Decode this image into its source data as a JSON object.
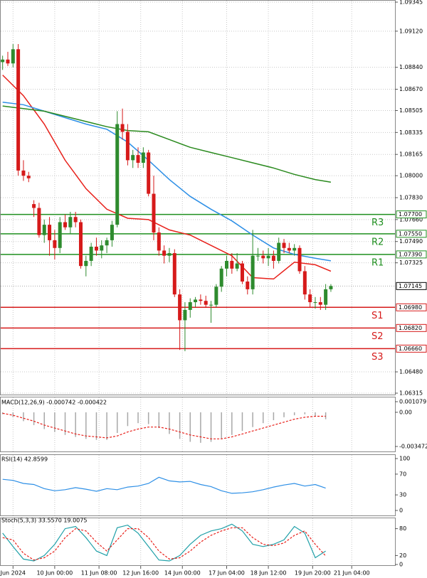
{
  "chart_data": [
    {
      "type": "candlestick",
      "xlim": [
        -0.5,
        75.3
      ],
      "xticks": [
        {
          "value": 2,
          "label": "Jun 2024"
        },
        {
          "value": 10,
          "label": "10 Jun 00:00"
        },
        {
          "value": 18.5,
          "label": "11 Jun 08:00"
        },
        {
          "value": 26.5,
          "label": "12 Jun 16:00"
        },
        {
          "value": 34.5,
          "label": "14 Jun 00:00"
        },
        {
          "value": 43,
          "label": "17 Jun 04:00"
        },
        {
          "value": 51,
          "label": "18 Jun 12:00"
        },
        {
          "value": 59.5,
          "label": "19 Jun 20:00"
        },
        {
          "value": 67,
          "label": "21 Jun 04:00"
        }
      ],
      "ylim": [
        1.06315,
        1.09345
      ],
      "yticks": [
        1.09345,
        {
          "value": 1.0912,
          "label": "1.09120"
        },
        {
          "value": 1.0884,
          "label": "1.08840"
        },
        {
          "value": 1.0867,
          "label": "1.08670"
        },
        1.08505,
        1.08335,
        1.08165,
        {
          "value": 1.08,
          "label": "1.08000"
        },
        {
          "value": 1.0783,
          "label": "1.07830"
        },
        {
          "value": 1.0766,
          "label": "1.07660"
        },
        {
          "value": 1.0749,
          "label": "1.07490"
        },
        1.07325,
        {
          "value": 1.0648,
          "label": "1.06480"
        },
        1.06315
      ],
      "grid": true,
      "up_color": "#2e8b2e",
      "down_color": "#d61a1a",
      "open": [
        1.0888,
        1.089,
        1.0887,
        1.0898,
        1.0804,
        1.08,
        1.0778,
        1.0775,
        1.0754,
        1.0762,
        1.075,
        1.0744,
        1.0764,
        1.076,
        1.0768,
        1.0764,
        1.073,
        1.0734,
        1.0745,
        1.0742,
        1.0746,
        1.075,
        1.0762,
        1.084,
        1.0834,
        1.0812,
        1.0816,
        1.081,
        1.0818,
        1.0786,
        1.0756,
        1.0742,
        1.0738,
        1.074,
        1.0708,
        1.0688,
        1.0696,
        1.0702,
        1.0704,
        1.0703,
        1.07,
        1.07,
        1.0714,
        1.0728,
        1.0734,
        1.0728,
        1.0732,
        1.0718,
        1.0712,
        1.0738,
        1.0738,
        1.0736,
        1.0738,
        1.0734,
        1.0748,
        1.0744,
        1.0742,
        1.0744,
        1.0726,
        1.0708,
        1.0702,
        1.0702,
        1.07,
        1.0712
      ],
      "high": [
        1.0893,
        1.0896,
        1.0902,
        1.0902,
        1.0812,
        1.0803,
        1.0781,
        1.0779,
        1.0766,
        1.0768,
        1.0758,
        1.0768,
        1.077,
        1.0772,
        1.0772,
        1.0766,
        1.0738,
        1.0748,
        1.0752,
        1.075,
        1.0752,
        1.0765,
        1.085,
        1.0852,
        1.084,
        1.082,
        1.0822,
        1.0822,
        1.082,
        1.08,
        1.076,
        1.0746,
        1.0744,
        1.0743,
        1.0712,
        1.0702,
        1.0705,
        1.0706,
        1.0708,
        1.0707,
        1.0703,
        1.0716,
        1.073,
        1.0738,
        1.074,
        1.074,
        1.0734,
        1.0722,
        1.0758,
        1.0744,
        1.0742,
        1.0744,
        1.0742,
        1.0752,
        1.0751,
        1.0748,
        1.0747,
        1.0746,
        1.073,
        1.0712,
        1.0706,
        1.0706,
        1.0716,
        1.0716
      ],
      "low": [
        1.0882,
        1.0885,
        1.0884,
        1.08,
        1.0796,
        1.0795,
        1.0768,
        1.0752,
        1.0748,
        1.0738,
        1.0735,
        1.074,
        1.0758,
        1.0755,
        1.076,
        1.0728,
        1.0722,
        1.073,
        1.0738,
        1.0736,
        1.074,
        1.0745,
        1.076,
        1.0828,
        1.0808,
        1.0806,
        1.0806,
        1.0806,
        1.0784,
        1.075,
        1.0738,
        1.0732,
        1.0733,
        1.0706,
        1.0665,
        1.0664,
        1.069,
        1.0698,
        1.07,
        1.0698,
        1.0686,
        1.0698,
        1.071,
        1.0722,
        1.0724,
        1.0726,
        1.0716,
        1.0708,
        1.0708,
        1.0734,
        1.0732,
        1.073,
        1.0728,
        1.0732,
        1.074,
        1.074,
        1.0738,
        1.0724,
        1.0704,
        1.0698,
        1.0697,
        1.0696,
        1.0696,
        1.071
      ],
      "close": [
        1.089,
        1.0887,
        1.0898,
        1.0804,
        1.08,
        1.0798,
        1.0775,
        1.0754,
        1.0762,
        1.075,
        1.0744,
        1.0764,
        1.076,
        1.0768,
        1.0764,
        1.073,
        1.0734,
        1.0745,
        1.0742,
        1.0746,
        1.075,
        1.0762,
        1.084,
        1.0834,
        1.0812,
        1.0816,
        1.081,
        1.0818,
        1.0786,
        1.0756,
        1.0742,
        1.0738,
        1.074,
        1.0708,
        1.0688,
        1.0696,
        1.0702,
        1.0704,
        1.0703,
        1.07,
        1.07,
        1.0714,
        1.0728,
        1.0734,
        1.0728,
        1.0732,
        1.0718,
        1.0712,
        1.0738,
        1.0738,
        1.0736,
        1.0738,
        1.0734,
        1.0748,
        1.0744,
        1.0742,
        1.0744,
        1.0726,
        1.0708,
        1.0702,
        1.0702,
        1.07,
        1.0712,
        1.07145
      ],
      "overlays": [
        {
          "color": "#e8201a",
          "x": [
            0,
            4,
            8,
            12,
            16,
            20,
            24,
            28,
            32,
            36,
            40,
            44,
            48,
            52,
            56,
            60,
            63
          ],
          "values": [
            1.0878,
            1.0862,
            1.084,
            1.0812,
            1.079,
            1.0774,
            1.0767,
            1.0766,
            1.0758,
            1.0754,
            1.0746,
            1.0738,
            1.0721,
            1.072,
            1.0733,
            1.0731,
            1.0726
          ]
        },
        {
          "color": "#2d8fe6",
          "x": [
            0,
            4,
            8,
            12,
            16,
            20,
            24,
            28,
            32,
            36,
            40,
            44,
            48,
            52,
            56,
            60,
            63
          ],
          "values": [
            1.0857,
            1.0855,
            1.085,
            1.0845,
            1.084,
            1.0836,
            1.0826,
            1.0812,
            1.0797,
            1.0784,
            1.0774,
            1.0765,
            1.0754,
            1.0744,
            1.0739,
            1.0736,
            1.0734
          ]
        },
        {
          "color": "#2a8a1e",
          "x": [
            0,
            4,
            8,
            12,
            16,
            20,
            24,
            28,
            32,
            36,
            40,
            44,
            48,
            52,
            56,
            60,
            63
          ],
          "values": [
            1.0854,
            1.0852,
            1.085,
            1.0846,
            1.0842,
            1.0838,
            1.0835,
            1.0834,
            1.0828,
            1.0822,
            1.0818,
            1.0814,
            1.081,
            1.0806,
            1.0801,
            1.0797,
            1.0795
          ]
        }
      ],
      "levels": [
        {
          "name": "R3",
          "value": 1.077,
          "label": "1.07700",
          "color": "#1f8f1f"
        },
        {
          "name": "R2",
          "value": 1.0755,
          "label": "1.07550",
          "color": "#1f8f1f"
        },
        {
          "name": "R1",
          "value": 1.0739,
          "label": "1.07390",
          "color": "#1f8f1f"
        },
        {
          "name": "S1",
          "value": 1.0698,
          "label": "1.06980",
          "color": "#d61a1a"
        },
        {
          "name": "S2",
          "value": 1.0682,
          "label": "1.06820",
          "color": "#d61a1a"
        },
        {
          "name": "S3",
          "value": 1.0666,
          "label": "1.06660",
          "color": "#d61a1a"
        }
      ],
      "last_price": 1.07145
    },
    {
      "type": "macd",
      "title": "MACD(12,26,9) -0.000742 -0.000422",
      "ylim": [
        -0.003472,
        0.001079
      ],
      "yticks": [
        0.001079,
        {
          "value": 0,
          "label": "0.00"
        },
        -0.003472
      ],
      "x": [
        0,
        2,
        4,
        6,
        8,
        10,
        12,
        14,
        16,
        18,
        20,
        22,
        24,
        26,
        28,
        30,
        32,
        34,
        36,
        38,
        40,
        42,
        44,
        46,
        48,
        50,
        52,
        54,
        56,
        58,
        60,
        62
      ],
      "series": [
        {
          "color": "#a8a8a8",
          "style": "bar",
          "values": [
            -0.0002,
            -0.0005,
            -0.0009,
            -0.0013,
            -0.0017,
            -0.002,
            -0.0023,
            -0.0025,
            -0.0027,
            -0.0028,
            -0.0028,
            -0.0021,
            -0.0014,
            -0.0011,
            -0.0012,
            -0.0016,
            -0.0022,
            -0.0027,
            -0.003,
            -0.0031,
            -0.003,
            -0.0027,
            -0.0023,
            -0.0019,
            -0.0015,
            -0.0011,
            -0.0008,
            -0.0005,
            -0.0003,
            -0.0002,
            -0.0004,
            -0.0007
          ]
        },
        {
          "color": "#e8201a",
          "style": "dash",
          "values": [
            -0.0001,
            -0.0003,
            -0.0006,
            -0.0009,
            -0.0013,
            -0.0016,
            -0.0019,
            -0.0022,
            -0.0024,
            -0.0025,
            -0.0026,
            -0.0024,
            -0.002,
            -0.0017,
            -0.0015,
            -0.0015,
            -0.0017,
            -0.002,
            -0.0023,
            -0.0025,
            -0.0027,
            -0.0027,
            -0.0025,
            -0.0022,
            -0.0019,
            -0.0016,
            -0.0013,
            -0.001,
            -0.0007,
            -0.0005,
            -0.0004,
            -0.0004
          ]
        }
      ]
    },
    {
      "type": "line",
      "title": "RSI(14) 42.8599",
      "ylim": [
        0,
        100
      ],
      "yticks": [
        100,
        70,
        30,
        0
      ],
      "x": [
        0,
        2,
        4,
        6,
        8,
        10,
        12,
        14,
        16,
        18,
        20,
        22,
        24,
        26,
        28,
        30,
        32,
        34,
        36,
        38,
        40,
        42,
        44,
        46,
        48,
        50,
        52,
        54,
        56,
        58,
        60,
        62
      ],
      "series": [
        {
          "color": "#2d8fe6",
          "style": "solid",
          "values": [
            60,
            58,
            52,
            50,
            42,
            38,
            40,
            44,
            41,
            37,
            42,
            40,
            45,
            47,
            52,
            64,
            57,
            55,
            56,
            50,
            46,
            38,
            33,
            34,
            36,
            40,
            45,
            49,
            52,
            47,
            50,
            43
          ]
        }
      ]
    },
    {
      "type": "line",
      "title": "Stoch(5,3,3) 33.5570 19.0075",
      "ylim": [
        0,
        100
      ],
      "yticks": [
        80,
        20,
        0
      ],
      "x": [
        0,
        2,
        4,
        6,
        8,
        10,
        12,
        14,
        16,
        18,
        20,
        22,
        24,
        26,
        28,
        30,
        32,
        34,
        36,
        38,
        40,
        42,
        44,
        46,
        48,
        50,
        52,
        54,
        56,
        58,
        60,
        62
      ],
      "series": [
        {
          "color": "#1fa0a8",
          "style": "solid",
          "values": [
            70,
            40,
            12,
            8,
            20,
            45,
            80,
            85,
            60,
            30,
            20,
            82,
            88,
            70,
            40,
            10,
            8,
            20,
            45,
            65,
            75,
            80,
            90,
            75,
            45,
            40,
            45,
            55,
            85,
            70,
            15,
            30
          ]
        },
        {
          "color": "#e8201a",
          "style": "dash",
          "values": [
            60,
            55,
            25,
            10,
            15,
            30,
            60,
            80,
            75,
            50,
            30,
            55,
            80,
            80,
            60,
            30,
            12,
            15,
            30,
            50,
            65,
            75,
            82,
            82,
            60,
            45,
            42,
            48,
            65,
            75,
            45,
            19
          ]
        }
      ]
    }
  ]
}
